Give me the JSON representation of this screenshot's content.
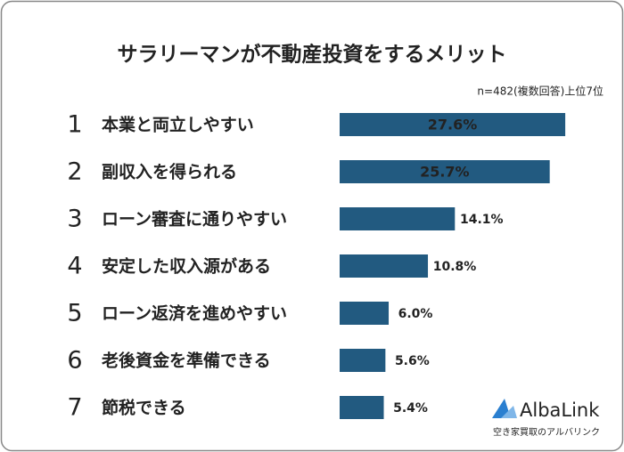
{
  "chart_data": {
    "type": "bar",
    "orientation": "horizontal",
    "title": "サラリーマンが不動産投資をするメリット",
    "subtitle": "n=482(複数回答)上位7位",
    "ranks": [
      1,
      2,
      3,
      4,
      5,
      6,
      7
    ],
    "categories": [
      "本業と両立しやすい",
      "副収入を得られる",
      "ローン審査に通りやすい",
      "安定した収入源がある",
      "ローン返済を進めやすい",
      "老後資金を準備できる",
      "節税できる"
    ],
    "values": [
      27.6,
      25.7,
      14.1,
      10.8,
      6.0,
      5.6,
      5.4
    ],
    "value_labels": [
      "27.6%",
      "25.7%",
      "14.1%",
      "10.8%",
      "6.0%",
      "5.6%",
      "5.4%"
    ],
    "color": "#225a80"
  },
  "logo": {
    "name": "AlbaLink",
    "tagline": "空き家買取のアルバリンク"
  }
}
